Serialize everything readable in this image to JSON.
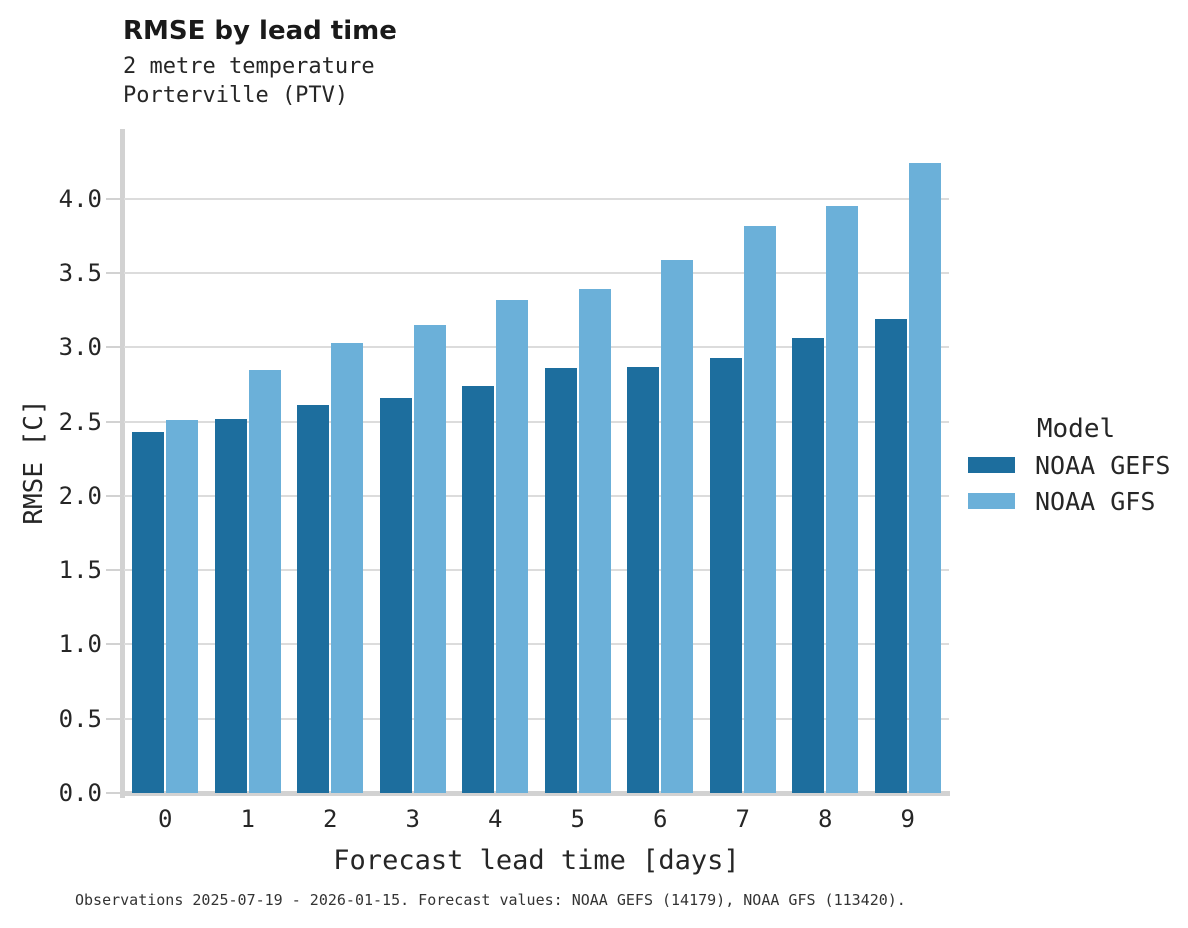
{
  "title": "RMSE by lead time",
  "footer": "Observations 2025-07-19 - 2026-01-15. Forecast values: NOAA GEFS (14179), NOAA GFS (113420).",
  "colors": {
    "gefs_bar": "#1d6e9e",
    "gfs_bar": "#6bb0d9",
    "gridline": "#dcdcdc",
    "spine": "#d2d2d2",
    "text": "#262626"
  },
  "chart_data": {
    "type": "bar",
    "title": "RMSE by lead time",
    "subtitle": [
      "2 metre temperature",
      "Porterville (PTV)"
    ],
    "categories": [
      "0",
      "1",
      "2",
      "3",
      "4",
      "5",
      "6",
      "7",
      "8",
      "9"
    ],
    "series": [
      {
        "name": "NOAA GEFS",
        "color": "#1d6e9e",
        "values": [
          2.43,
          2.52,
          2.61,
          2.66,
          2.74,
          2.86,
          2.87,
          2.93,
          3.06,
          3.19
        ]
      },
      {
        "name": "NOAA GFS",
        "color": "#6bb0d9",
        "values": [
          2.51,
          2.85,
          3.03,
          3.15,
          3.32,
          3.39,
          3.59,
          3.82,
          3.95,
          4.24
        ]
      }
    ],
    "xlabel": "Forecast lead time [days]",
    "ylabel": "RMSE [C]",
    "ylim": [
      0,
      4.47
    ],
    "yticks": [
      0.0,
      0.5,
      1.0,
      1.5,
      2.0,
      2.5,
      3.0,
      3.5,
      4.0
    ],
    "grid": true,
    "legend_title": "Model",
    "legend_position": "right"
  }
}
